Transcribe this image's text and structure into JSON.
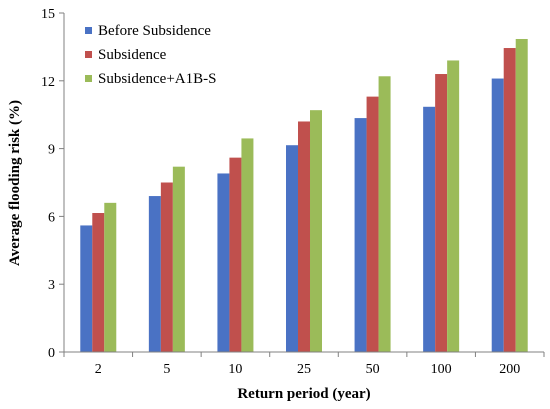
{
  "chart_data": {
    "type": "bar",
    "categories": [
      "2",
      "5",
      "10",
      "25",
      "50",
      "100",
      "200"
    ],
    "series": [
      {
        "name": "Before Subsidence",
        "color": "#4a72c4",
        "values": [
          5.6,
          6.9,
          7.9,
          9.15,
          10.35,
          10.85,
          12.1
        ]
      },
      {
        "name": "Subsidence",
        "color": "#c0504d",
        "values": [
          6.15,
          7.5,
          8.6,
          10.2,
          11.3,
          12.3,
          13.45
        ]
      },
      {
        "name": "Subsidence+A1B-S",
        "color": "#9bbb59",
        "values": [
          6.6,
          8.2,
          9.45,
          10.7,
          12.2,
          12.9,
          13.85
        ]
      }
    ],
    "xlabel": "Return period (year)",
    "ylabel": "Average flooding risk (%)",
    "ylim": [
      0,
      15
    ],
    "yticks": [
      0,
      3,
      6,
      9,
      12,
      15
    ],
    "grid": false,
    "legend_position": "top-left"
  }
}
